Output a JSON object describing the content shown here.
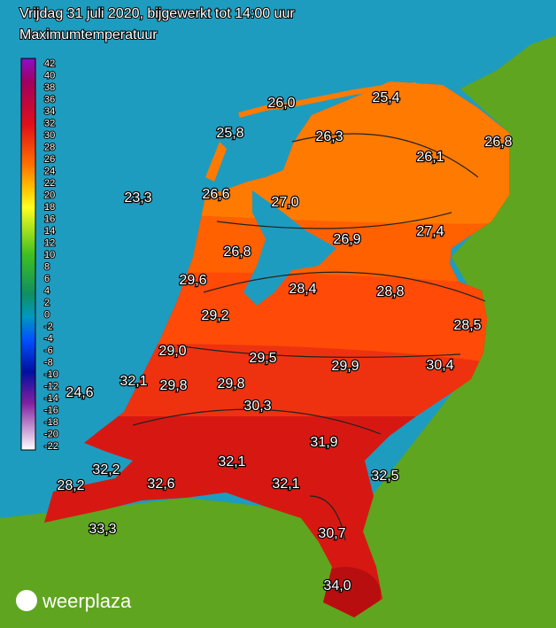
{
  "header": {
    "title": "Vrijdag 31 juli 2020, bijgewerkt tot 14:00 uur",
    "subtitle": "Maximumtemperatuur"
  },
  "legend": {
    "labels": [
      "42",
      "40",
      "38",
      "36",
      "34",
      "32",
      "30",
      "28",
      "26",
      "24",
      "22",
      "20",
      "18",
      "16",
      "14",
      "12",
      "10",
      "8",
      "6",
      "4",
      "2",
      "0",
      "-2",
      "-4",
      "-6",
      "-8",
      "-10",
      "-12",
      "-14",
      "-16",
      "-18",
      "-20",
      "-22"
    ]
  },
  "stations": [
    {
      "label": "26,0"
    },
    {
      "label": "25,4"
    },
    {
      "label": "25,8"
    },
    {
      "label": "26,3"
    },
    {
      "label": "26,8"
    },
    {
      "label": "26,1"
    },
    {
      "label": "23,3"
    },
    {
      "label": "26,6"
    },
    {
      "label": "27,0"
    },
    {
      "label": "26,9"
    },
    {
      "label": "27,4"
    },
    {
      "label": "26,8"
    },
    {
      "label": "29,6"
    },
    {
      "label": "28,4"
    },
    {
      "label": "28,8"
    },
    {
      "label": "29,2"
    },
    {
      "label": "28,5"
    },
    {
      "label": "29,0"
    },
    {
      "label": "29,5"
    },
    {
      "label": "29,9"
    },
    {
      "label": "30,4"
    },
    {
      "label": "32,1"
    },
    {
      "label": "29,8"
    },
    {
      "label": "29,8"
    },
    {
      "label": "24,6"
    },
    {
      "label": "30,3"
    },
    {
      "label": "31,9"
    },
    {
      "label": "32,2"
    },
    {
      "label": "32,1"
    },
    {
      "label": "32,5"
    },
    {
      "label": "28,2"
    },
    {
      "label": "32,6"
    },
    {
      "label": "32,1"
    },
    {
      "label": "33,3"
    },
    {
      "label": "30,7"
    },
    {
      "label": "34,0"
    }
  ],
  "logo": {
    "text": "weerplaza"
  }
}
